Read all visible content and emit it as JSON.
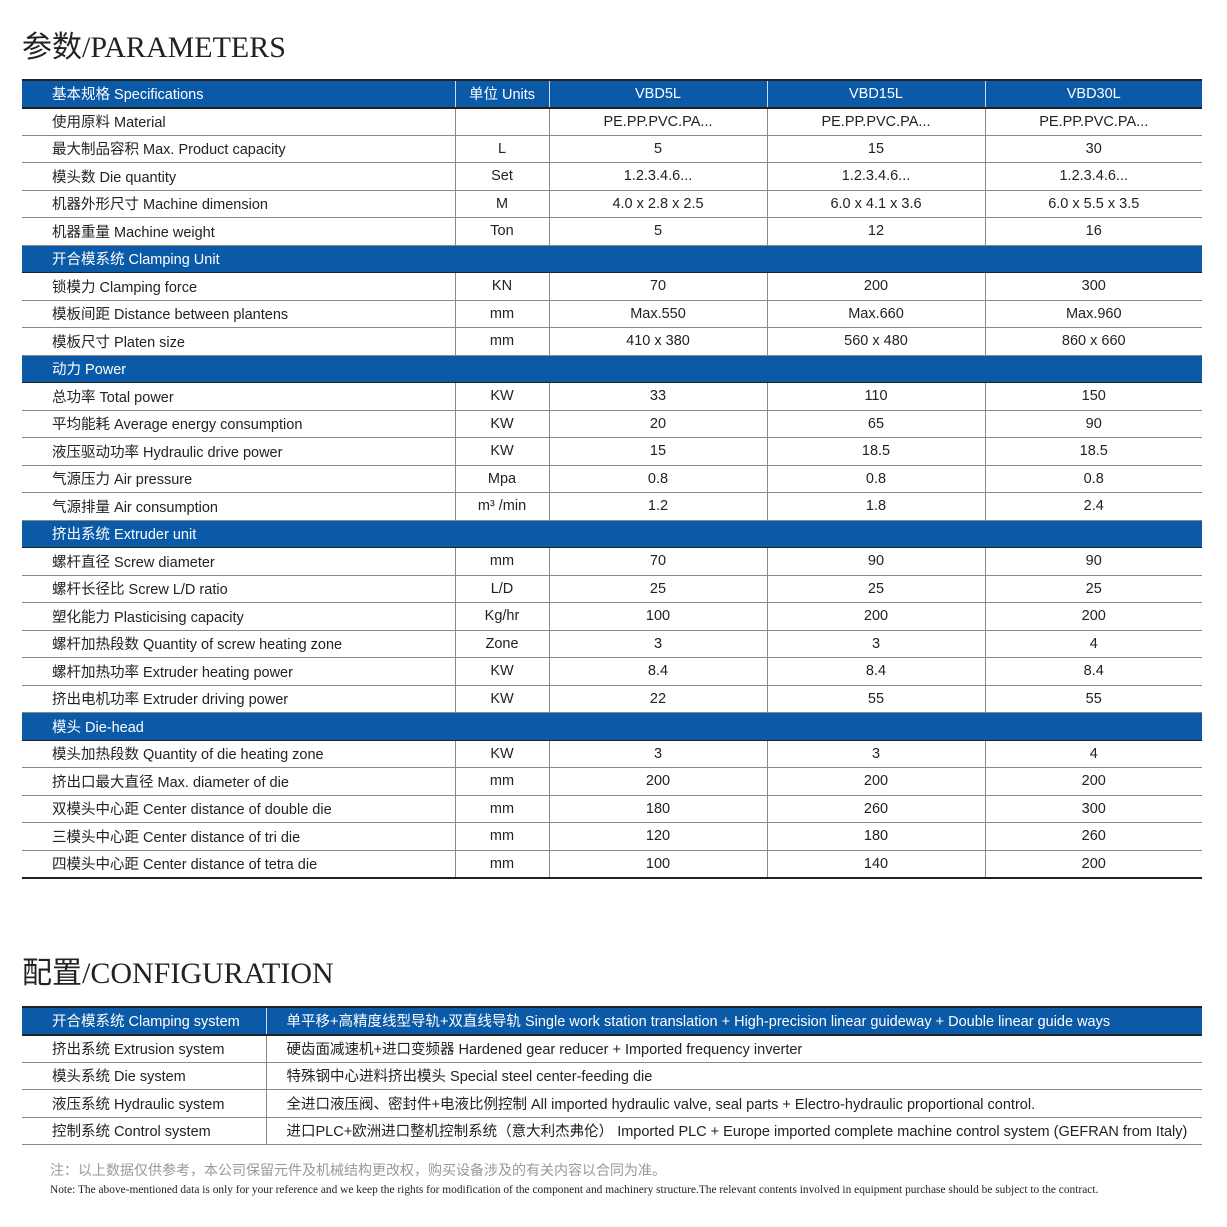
{
  "parameters": {
    "title": "参数/PARAMETERS",
    "header": {
      "spec": "基本规格 Specifications",
      "units": "单位 Units",
      "models": [
        "VBD5L",
        "VBD15L",
        "VBD30L"
      ]
    },
    "rows": [
      {
        "label": "使用原料 Material",
        "unit": "",
        "values": [
          "PE.PP.PVC.PA...",
          "PE.PP.PVC.PA...",
          "PE.PP.PVC.PA..."
        ]
      },
      {
        "label": "最大制品容积 Max. Product capacity",
        "unit": "L",
        "values": [
          "5",
          "15",
          "30"
        ]
      },
      {
        "label": "模头数 Die quantity",
        "unit": "Set",
        "values": [
          "1.2.3.4.6...",
          "1.2.3.4.6...",
          "1.2.3.4.6..."
        ]
      },
      {
        "label": "机器外形尺寸 Machine dimension",
        "unit": "M",
        "values": [
          "4.0 x  2.8 x 2.5",
          "6.0 x 4.1 x 3.6",
          "6.0 x 5.5 x 3.5"
        ]
      },
      {
        "label": "机器重量 Machine weight",
        "unit": "Ton",
        "values": [
          "5",
          "12",
          "16"
        ]
      },
      {
        "section": "开合模系统 Clamping Unit"
      },
      {
        "label": "锁模力 Clamping force",
        "unit": "KN",
        "values": [
          "70",
          "200",
          "300"
        ]
      },
      {
        "label": "模板间距 Distance between plantens",
        "unit": "mm",
        "values": [
          "Max.550",
          "Max.660",
          "Max.960"
        ]
      },
      {
        "label": "模板尺寸 Platen size",
        "unit": "mm",
        "values": [
          "410 x 380",
          "560 x 480",
          "860 x 660"
        ]
      },
      {
        "section": "动力 Power"
      },
      {
        "label": "总功率 Total power",
        "unit": "KW",
        "values": [
          "33",
          "110",
          "150"
        ]
      },
      {
        "label": "平均能耗 Average energy consumption",
        "unit": "KW",
        "values": [
          "20",
          "65",
          "90"
        ]
      },
      {
        "label": "液压驱动功率 Hydraulic drive power",
        "unit": "KW",
        "values": [
          "15",
          "18.5",
          "18.5"
        ]
      },
      {
        "label": "气源压力 Air pressure",
        "unit": "Mpa",
        "values": [
          "0.8",
          "0.8",
          "0.8"
        ]
      },
      {
        "label": "气源排量 Air consumption",
        "unit": "m³ /min",
        "values": [
          "1.2",
          "1.8",
          "2.4"
        ]
      },
      {
        "section": "挤出系统 Extruder unit"
      },
      {
        "label": "螺杆直径 Screw diameter",
        "unit": "mm",
        "values": [
          "70",
          "90",
          "90"
        ]
      },
      {
        "label": "螺杆长径比 Screw L/D ratio",
        "unit": "L/D",
        "values": [
          "25",
          "25",
          "25"
        ]
      },
      {
        "label": "塑化能力 Plasticising capacity",
        "unit": "Kg/hr",
        "values": [
          "100",
          "200",
          "200"
        ]
      },
      {
        "label": "螺杆加热段数 Quantity of screw heating zone",
        "unit": "Zone",
        "values": [
          "3",
          "3",
          "4"
        ]
      },
      {
        "label": "螺杆加热功率 Extruder heating power",
        "unit": "KW",
        "values": [
          "8.4",
          "8.4",
          "8.4"
        ]
      },
      {
        "label": "挤出电机功率 Extruder driving power",
        "unit": "KW",
        "values": [
          "22",
          "55",
          "55"
        ]
      },
      {
        "section": "模头 Die-head"
      },
      {
        "label": "模头加热段数 Quantity of die heating zone",
        "unit": "KW",
        "values": [
          "3",
          "3",
          "4"
        ]
      },
      {
        "label": "挤出口最大直径 Max. diameter of die",
        "unit": "mm",
        "values": [
          "200",
          "200",
          "200"
        ]
      },
      {
        "label": "双模头中心距 Center distance of double die",
        "unit": "mm",
        "values": [
          "180",
          "260",
          "300"
        ]
      },
      {
        "label": "三模头中心距 Center distance of tri die",
        "unit": "mm",
        "values": [
          "120",
          "180",
          "260"
        ]
      },
      {
        "label": "四模头中心距 Center distance of tetra die",
        "unit": "mm",
        "values": [
          "100",
          "140",
          "200"
        ]
      }
    ]
  },
  "configuration": {
    "title": "配置/CONFIGURATION",
    "rows": [
      {
        "label": "开合模系统 Clamping system",
        "value": "单平移+高精度线型导轨+双直线导轨 Single work station translation + High-precision linear guideway + Double linear guide ways"
      },
      {
        "label": "挤出系统 Extrusion system",
        "value": "硬齿面减速机+进口变频器 Hardened gear reducer + Imported frequency inverter"
      },
      {
        "label": "模头系统 Die system",
        "value": "特殊钢中心进料挤出模头 Special steel center-feeding die"
      },
      {
        "label": "液压系统 Hydraulic system",
        "value": "全进口液压阀、密封件+电液比例控制 All imported hydraulic valve, seal parts + Electro-hydraulic proportional control."
      },
      {
        "label": "控制系统 Control system",
        "value": "进口PLC+欧洲进口整机控制系统（意大利杰弗伦） Imported PLC + Europe imported complete machine control system (GEFRAN from Italy)"
      }
    ]
  },
  "notes": {
    "cn": "注：以上数据仅供参考，本公司保留元件及机械结构更改权，购买设备涉及的有关内容以合同为准。",
    "en": "Note: The above-mentioned data is only for your reference and we keep the rights for modification of the component and machinery structure.The relevant contents involved in equipment purchase should be subject to the contract."
  },
  "colors": {
    "header_blue": "#0a5aa8"
  }
}
